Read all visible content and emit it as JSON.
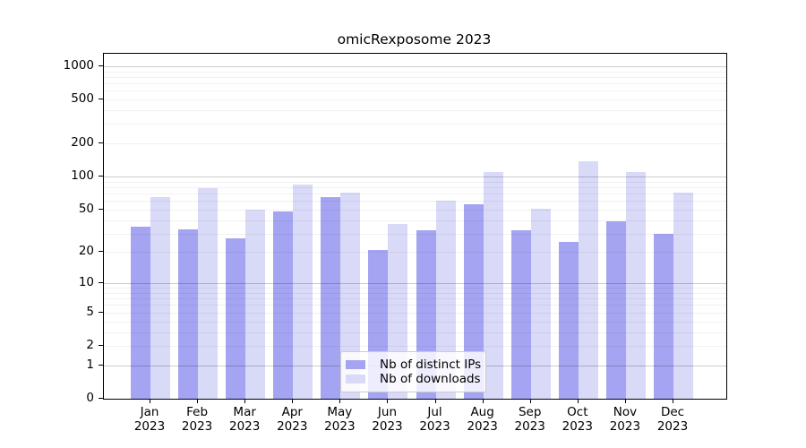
{
  "title": "omicRexposome 2023",
  "chart_data": {
    "type": "bar",
    "title": "omicRexposome 2023",
    "categories": [
      "Jan",
      "Feb",
      "Mar",
      "Apr",
      "May",
      "Jun",
      "Jul",
      "Aug",
      "Sep",
      "Oct",
      "Nov",
      "Dec"
    ],
    "x_year": "2023",
    "series": [
      {
        "name": "Nb of distinct IPs",
        "color": "#a4a4f2",
        "values": [
          35,
          33,
          27,
          48,
          65,
          21,
          32,
          56,
          32,
          25,
          39,
          30
        ]
      },
      {
        "name": "Nb of downloads",
        "color": "#d9d9f8",
        "values": [
          65,
          78,
          50,
          85,
          72,
          37,
          60,
          110,
          51,
          138,
          110,
          72
        ]
      }
    ],
    "yscale": "log10(1+value)",
    "ylim": [
      0,
      1300
    ],
    "y_tick_values": [
      1000,
      500,
      200,
      100,
      50,
      20,
      10,
      5,
      2,
      1,
      0
    ],
    "y_tick_labels": [
      "1000",
      "500",
      "200",
      "100",
      "50",
      "20",
      "10",
      "5",
      "2",
      "1",
      "0"
    ],
    "grid": "horizontal major at powers of 10, faint minors between",
    "legend_position": "lower center inside plot"
  },
  "legend": {
    "items": [
      {
        "label": "Nb of distinct IPs",
        "color": "#a4a4f2"
      },
      {
        "label": "Nb of downloads",
        "color": "#d9d9f8"
      }
    ]
  }
}
